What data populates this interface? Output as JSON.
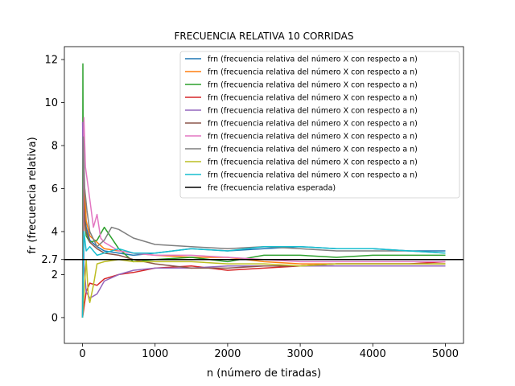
{
  "chart_data": {
    "type": "line",
    "title": "FRECUENCIA RELATIVA 10 CORRIDAS",
    "xlabel": "n (número de tiradas)",
    "ylabel": "fr (frecuencia relativa)",
    "xlim": [
      -250,
      5250
    ],
    "ylim": [
      -1.2,
      12.6
    ],
    "xticks": [
      0,
      1000,
      2000,
      3000,
      4000,
      5000
    ],
    "xtick_labels": [
      "0",
      "1000",
      "2000",
      "3000",
      "4000",
      "5000"
    ],
    "yticks": [
      0,
      2,
      2.7,
      4,
      6,
      8,
      10,
      12
    ],
    "ytick_labels": [
      "0",
      "2",
      "2.7",
      "4",
      "6",
      "8",
      "10",
      "12"
    ],
    "grid": false,
    "legend_position": "top-right",
    "reference_line": {
      "name": "fre (frecuencia relativa esperada)",
      "y": 2.7,
      "color": "#000000"
    },
    "series": [
      {
        "name": "frn (frecuencia relativa del número X con respecto a n)",
        "color": "#1f77b4",
        "x": [
          1,
          20,
          50,
          100,
          200,
          300,
          500,
          700,
          1000,
          1500,
          2000,
          2500,
          3000,
          3500,
          4000,
          4500,
          5000
        ],
        "y": [
          0,
          5.5,
          4.2,
          3.6,
          3.3,
          3.1,
          3.0,
          2.9,
          3.0,
          3.2,
          3.1,
          3.2,
          3.3,
          3.2,
          3.2,
          3.1,
          3.1
        ]
      },
      {
        "name": "frn (frecuencia relativa del número X con respecto a n)",
        "color": "#ff7f0e",
        "x": [
          1,
          30,
          50,
          100,
          200,
          300,
          500,
          700,
          1000,
          1500,
          2000,
          2500,
          3000,
          3500,
          4000,
          4500,
          5000
        ],
        "y": [
          0,
          6.0,
          4.5,
          3.8,
          3.5,
          3.2,
          3.1,
          3.0,
          2.9,
          2.8,
          2.8,
          2.6,
          2.5,
          2.5,
          2.5,
          2.5,
          2.5
        ]
      },
      {
        "name": "frn (frecuencia relativa del número X con respecto a n)",
        "color": "#2ca02c",
        "x": [
          1,
          5,
          10,
          20,
          50,
          100,
          200,
          300,
          500,
          700,
          1000,
          1500,
          2000,
          2500,
          3000,
          3500,
          4000,
          4500,
          5000
        ],
        "y": [
          0,
          11.8,
          7.0,
          5.0,
          3.8,
          3.5,
          3.6,
          4.2,
          3.2,
          2.6,
          2.7,
          2.8,
          2.6,
          2.9,
          2.9,
          2.8,
          2.9,
          2.9,
          2.9
        ]
      },
      {
        "name": "frn (frecuencia relativa del número X con respecto a n)",
        "color": "#d62728",
        "x": [
          1,
          50,
          100,
          200,
          300,
          500,
          700,
          1000,
          1500,
          2000,
          2500,
          3000,
          3500,
          4000,
          4500,
          5000
        ],
        "y": [
          0,
          1.2,
          1.6,
          1.5,
          1.8,
          2.0,
          2.1,
          2.3,
          2.4,
          2.2,
          2.3,
          2.4,
          2.5,
          2.5,
          2.5,
          2.6
        ]
      },
      {
        "name": "frn (frecuencia relativa del número X con respecto a n)",
        "color": "#9467bd",
        "x": [
          1,
          20,
          50,
          100,
          200,
          300,
          500,
          700,
          1000,
          1500,
          2000,
          2500,
          3000,
          3500,
          4000,
          4500,
          5000
        ],
        "y": [
          9.1,
          2.5,
          1.2,
          0.9,
          1.1,
          1.7,
          2.0,
          2.2,
          2.3,
          2.3,
          2.4,
          2.4,
          2.4,
          2.4,
          2.4,
          2.4,
          2.4
        ]
      },
      {
        "name": "frn (frecuencia relativa del número X con respecto a n)",
        "color": "#8c564b",
        "x": [
          1,
          10,
          30,
          50,
          100,
          200,
          300,
          500,
          700,
          1000,
          1500,
          2000,
          2500,
          3000,
          3500,
          4000,
          4500,
          5000
        ],
        "y": [
          0,
          6.5,
          4.5,
          4.0,
          3.5,
          3.2,
          3.0,
          2.9,
          2.7,
          2.5,
          2.3,
          2.3,
          2.4,
          2.4,
          2.5,
          2.5,
          2.5,
          2.5
        ]
      },
      {
        "name": "frn (frecuencia relativa del número X con respecto a n)",
        "color": "#e377c2",
        "x": [
          1,
          20,
          40,
          60,
          100,
          150,
          200,
          250,
          300,
          500,
          700,
          1000,
          1500,
          2000,
          2500,
          3000,
          3500,
          4000,
          4500,
          5000
        ],
        "y": [
          0,
          9.3,
          7.0,
          6.5,
          5.5,
          4.2,
          4.8,
          3.7,
          3.5,
          3.1,
          3.0,
          2.9,
          2.9,
          2.8,
          2.7,
          2.6,
          2.6,
          2.6,
          2.6,
          2.6
        ]
      },
      {
        "name": "frn (frecuencia relativa del número X con respecto a n)",
        "color": "#7f7f7f",
        "x": [
          1,
          10,
          30,
          60,
          100,
          200,
          300,
          400,
          500,
          700,
          1000,
          1500,
          2000,
          2500,
          3000,
          3500,
          4000,
          4500,
          5000
        ],
        "y": [
          0,
          8.4,
          6.0,
          5.0,
          4.0,
          3.3,
          3.6,
          4.2,
          4.1,
          3.7,
          3.4,
          3.3,
          3.2,
          3.3,
          3.2,
          3.1,
          3.1,
          3.1,
          3.0
        ]
      },
      {
        "name": "frn (frecuencia relativa del número X con respecto a n)",
        "color": "#bcbd22",
        "x": [
          1,
          50,
          80,
          100,
          150,
          200,
          300,
          500,
          700,
          1000,
          1500,
          2000,
          2500,
          3000,
          3500,
          4000,
          4500,
          5000
        ],
        "y": [
          0,
          2.7,
          1.0,
          0.7,
          1.5,
          2.5,
          2.6,
          2.7,
          2.6,
          2.6,
          2.6,
          2.5,
          2.5,
          2.4,
          2.5,
          2.5,
          2.5,
          2.5
        ]
      },
      {
        "name": "frn (frecuencia relativa del número X con respecto a n)",
        "color": "#17becf",
        "x": [
          1,
          20,
          50,
          100,
          200,
          300,
          500,
          700,
          1000,
          1500,
          2000,
          2500,
          3000,
          3500,
          4000,
          4500,
          5000
        ],
        "y": [
          0,
          4.0,
          3.1,
          3.3,
          2.9,
          3.0,
          3.2,
          3.0,
          3.0,
          3.2,
          3.1,
          3.3,
          3.3,
          3.2,
          3.2,
          3.1,
          3.0
        ]
      }
    ]
  }
}
